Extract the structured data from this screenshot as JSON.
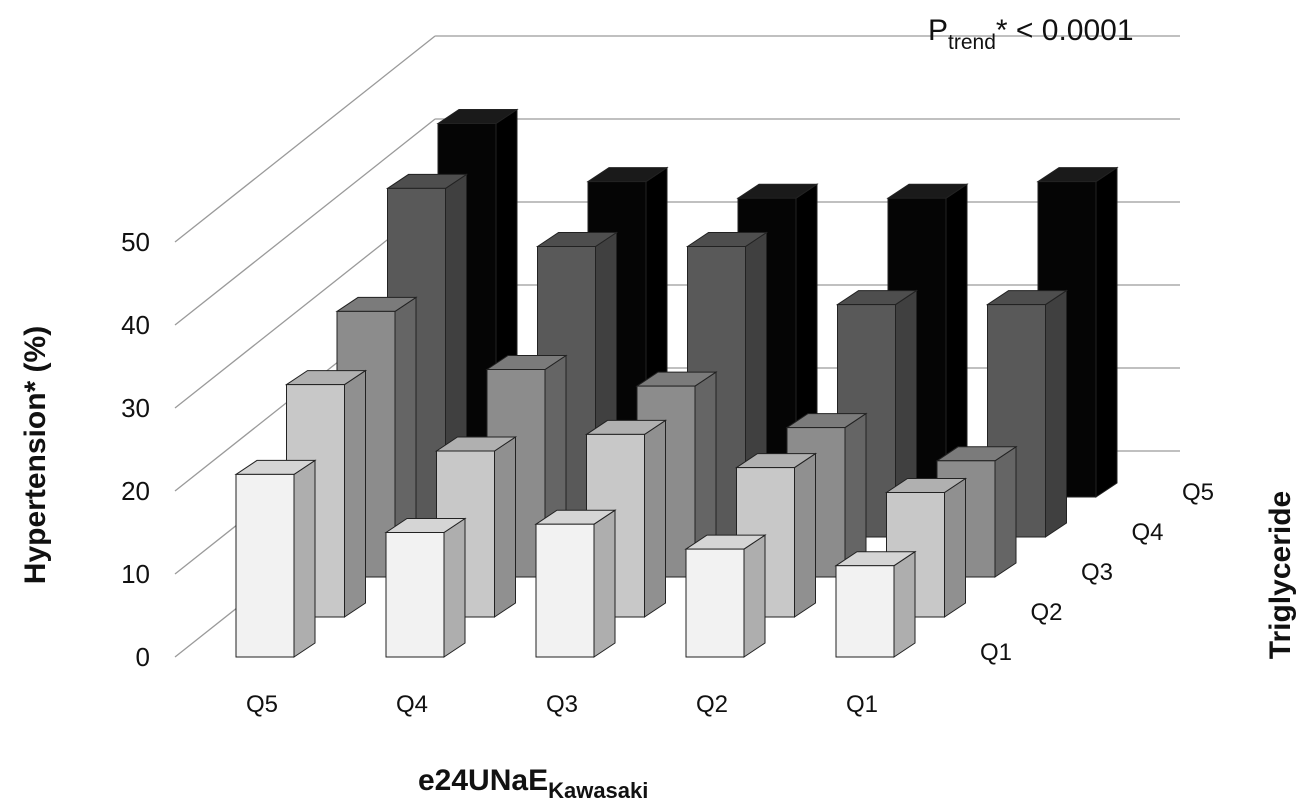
{
  "chart_data": {
    "type": "bar",
    "subtype": "3d-column",
    "annotation": {
      "main": "P",
      "sub": "trend",
      "rest": "* < 0.0001"
    },
    "ylabel": "Hypertension* (%)",
    "xlabel": {
      "main": "e24UNaE",
      "sub": "Kawasaki"
    },
    "zlabel": "Triglyceride",
    "ylim": [
      0,
      50
    ],
    "yticks": [
      0,
      10,
      20,
      30,
      40,
      50
    ],
    "grid": true,
    "categories": [
      "Q5",
      "Q4",
      "Q3",
      "Q2",
      "Q1"
    ],
    "series": [
      {
        "name": "Q1",
        "color": "#f2f2f2",
        "values": [
          22,
          15,
          16,
          13,
          11
        ]
      },
      {
        "name": "Q2",
        "color": "#c8c8c8",
        "values": [
          28,
          20,
          22,
          18,
          15
        ]
      },
      {
        "name": "Q3",
        "color": "#8c8c8c",
        "values": [
          32,
          25,
          23,
          18,
          14
        ]
      },
      {
        "name": "Q4",
        "color": "#595959",
        "values": [
          42,
          35,
          35,
          28,
          28
        ]
      },
      {
        "name": "Q5",
        "color": "#050505",
        "values": [
          45,
          38,
          36,
          36,
          38
        ]
      }
    ]
  }
}
